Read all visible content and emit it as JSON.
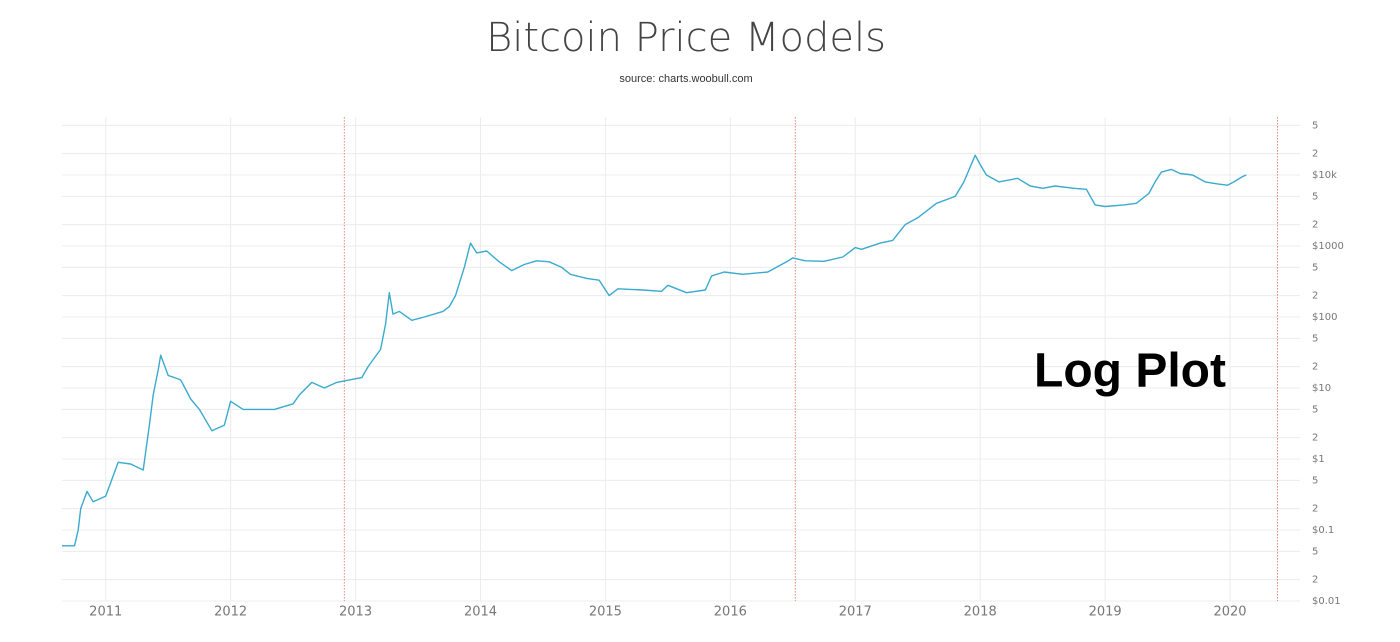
{
  "chart_data": {
    "type": "line",
    "title": "Bitcoin Price Models",
    "subtitle": "source: charts.woobull.com",
    "annotation": "Log Plot",
    "color": "#3aaacf",
    "log_scale": true,
    "grid": true,
    "vline_color": "#e0473a",
    "vlines": [
      2012.91,
      2016.52,
      2020.38
    ],
    "xlim": [
      2010.65,
      2020.48
    ],
    "xticks": [
      2011,
      2012,
      2013,
      2014,
      2015,
      2016,
      2017,
      2018,
      2019,
      2020
    ],
    "ylim": [
      0.01,
      50000
    ],
    "yticks": [
      {
        "value": 0.01,
        "label": "$0.01"
      },
      {
        "value": 0.02,
        "label": "2"
      },
      {
        "value": 0.05,
        "label": "5"
      },
      {
        "value": 0.1,
        "label": "$0.1"
      },
      {
        "value": 0.2,
        "label": "2"
      },
      {
        "value": 0.5,
        "label": "5"
      },
      {
        "value": 1,
        "label": "$1"
      },
      2,
      5,
      {
        "value": 10,
        "label": "$10"
      },
      {
        "value": 20,
        "label": "2"
      },
      {
        "value": 50,
        "label": "5"
      },
      {
        "value": 100,
        "label": "$100"
      },
      {
        "value": 200,
        "label": "2"
      },
      {
        "value": 500,
        "label": "5"
      },
      {
        "value": 1000,
        "label": "$1000"
      },
      {
        "value": 2000,
        "label": "2"
      },
      {
        "value": 5000,
        "label": "5"
      },
      {
        "value": 10000,
        "label": "$10k"
      },
      {
        "value": 20000,
        "label": "2"
      },
      {
        "value": 50000,
        "label": "5"
      }
    ],
    "x": [
      2010.65,
      2010.75,
      2010.78,
      2010.8,
      2010.85,
      2010.9,
      2011.0,
      2011.1,
      2011.2,
      2011.3,
      2011.35,
      2011.38,
      2011.42,
      2011.44,
      2011.5,
      2011.55,
      2011.6,
      2011.68,
      2011.75,
      2011.85,
      2011.95,
      2012.0,
      2012.1,
      2012.2,
      2012.35,
      2012.5,
      2012.55,
      2012.65,
      2012.75,
      2012.85,
      2012.95,
      2013.05,
      2013.1,
      2013.2,
      2013.24,
      2013.27,
      2013.3,
      2013.35,
      2013.45,
      2013.55,
      2013.7,
      2013.75,
      2013.8,
      2013.87,
      2013.92,
      2013.97,
      2014.05,
      2014.15,
      2014.25,
      2014.35,
      2014.45,
      2014.55,
      2014.65,
      2014.72,
      2014.85,
      2014.95,
      2015.03,
      2015.1,
      2015.3,
      2015.45,
      2015.5,
      2015.65,
      2015.8,
      2015.85,
      2015.95,
      2016.1,
      2016.3,
      2016.45,
      2016.5,
      2016.6,
      2016.75,
      2016.9,
      2017.0,
      2017.05,
      2017.2,
      2017.3,
      2017.4,
      2017.5,
      2017.65,
      2017.8,
      2017.87,
      2017.96,
      2018.0,
      2018.05,
      2018.15,
      2018.3,
      2018.4,
      2018.5,
      2018.6,
      2018.75,
      2018.85,
      2018.92,
      2019.0,
      2019.15,
      2019.25,
      2019.35,
      2019.4,
      2019.45,
      2019.53,
      2019.6,
      2019.7,
      2019.8,
      2019.9,
      2019.98,
      2020.03,
      2020.1,
      2020.13
    ],
    "values": [
      0.06,
      0.06,
      0.1,
      0.2,
      0.35,
      0.25,
      0.3,
      0.9,
      0.85,
      0.7,
      3,
      8,
      18,
      29,
      15,
      14,
      13,
      7,
      5,
      2.5,
      3,
      6.5,
      5,
      5,
      5,
      6,
      8,
      12,
      10,
      12,
      13,
      14,
      20,
      35,
      80,
      220,
      110,
      120,
      90,
      100,
      120,
      140,
      200,
      500,
      1100,
      800,
      850,
      600,
      450,
      550,
      620,
      600,
      500,
      400,
      350,
      330,
      200,
      250,
      240,
      230,
      280,
      220,
      240,
      380,
      430,
      400,
      430,
      600,
      680,
      620,
      610,
      700,
      950,
      900,
      1100,
      1200,
      2000,
      2500,
      4000,
      5000,
      8000,
      19000,
      14000,
      10000,
      8000,
      9000,
      7000,
      6500,
      7000,
      6500,
      6300,
      3800,
      3600,
      3800,
      4000,
      5500,
      8000,
      11000,
      12000,
      10500,
      10000,
      8000,
      7500,
      7200,
      8000,
      9500,
      10000
    ]
  }
}
